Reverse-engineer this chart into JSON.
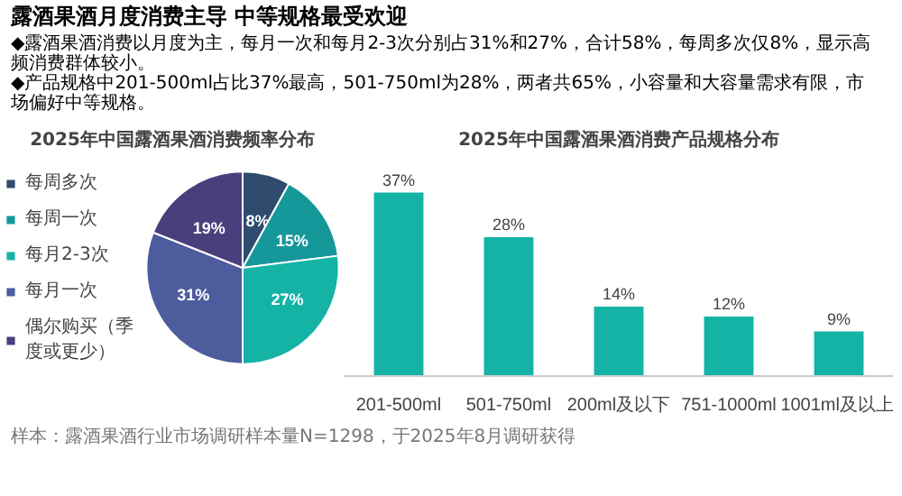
{
  "chart_data": [
    {
      "type": "pie",
      "title": "2025年中国露酒果酒消费频率分布",
      "annotations": [
        "露酒果酒月度消费主导 中等规格最受欢迎",
        "◆露酒果酒消费以月度为主，每月一次和每月2-3次分别占31%和27%，合计58%，每周多次仅8%，显示高频消费群体较小。",
        "◆产品规格中201-500ml占比37%最高，501-750ml为28%，两者共65%，小容量和大容量需求有限，市场偏好中等规格。"
      ],
      "categories": [
        "每周多次",
        "每周一次",
        "每月2-3次",
        "每月一次",
        "偶尔购买（季度或更少）"
      ],
      "values": [
        8,
        15,
        27,
        31,
        19
      ],
      "value_labels": [
        "8%",
        "15%",
        "27%",
        "31%",
        "19%"
      ],
      "colors": [
        "#2f4b6e",
        "#16979a",
        "#14b3a6",
        "#4c5c9c",
        "#4a3f7c"
      ],
      "legend": "left"
    },
    {
      "type": "bar",
      "title": "2025年中国露酒果酒消费产品规格分布",
      "annotations": [
        "样本：露酒果酒行业市场调研样本量N=1298，于2025年8月调研获得"
      ],
      "categories": [
        "201-500ml",
        "501-750ml",
        "200ml及以下",
        "751-1000ml",
        "1001ml及以上"
      ],
      "values": [
        37,
        28,
        14,
        12,
        9
      ],
      "value_labels": [
        "37%",
        "28%",
        "14%",
        "12%",
        "9%"
      ],
      "color": "#14b3a6"
    }
  ]
}
